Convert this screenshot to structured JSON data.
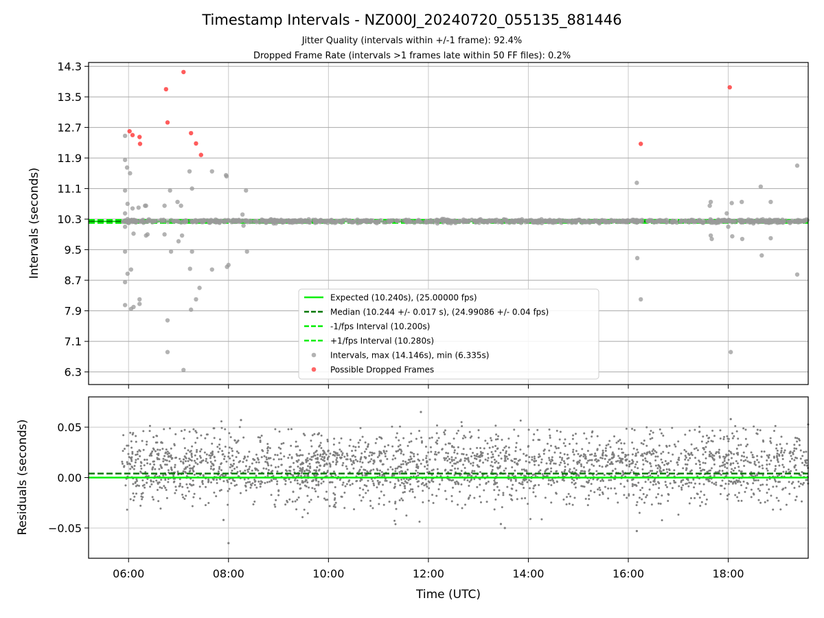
{
  "chart_data": [
    {
      "type": "scatter",
      "panel": "top",
      "title": "Timestamp Intervals - NZ000J_20240720_055135_881446",
      "subtitle_lines": [
        "Jitter Quality (intervals within +/-1 frame): 92.4%",
        "Dropped Frame Rate (intervals >1 frames late within 50 FF files): 0.2%"
      ],
      "ylabel": "Intervals (seconds)",
      "xlabel": "",
      "x_unit": "hours UTC",
      "xlim": [
        5.2,
        19.6
      ],
      "ylim": [
        5.97,
        14.4
      ],
      "yticks": [
        "6.3",
        "7.1",
        "7.9",
        "8.7",
        "9.5",
        "10.3",
        "11.1",
        "11.9",
        "12.7",
        "13.5",
        "14.3"
      ],
      "grid": true,
      "legend_position": "lower-center",
      "lines": [
        {
          "name": "Expected (10.240s), (25.00000 fps)",
          "y": 10.24,
          "color": "#00ee00",
          "style": "solid"
        },
        {
          "name": "Median (10.244 +/- 0.017 s), (24.99086 +/- 0.04 fps)",
          "y": 10.244,
          "color": "#007700",
          "style": "dashed"
        },
        {
          "name": "-1/fps Interval (10.200s)",
          "y": 10.2,
          "color": "#00ee00",
          "style": "dashed"
        },
        {
          "name": "+1/fps Interval (10.280s)",
          "y": 10.28,
          "color": "#00ee00",
          "style": "dashed"
        }
      ],
      "series": [
        {
          "name": "Intervals, max (14.146s), min (6.335s)",
          "color": "#999999",
          "points": [
            [
              5.93,
              12.48
            ],
            [
              5.93,
              11.85
            ],
            [
              5.93,
              11.05
            ],
            [
              5.93,
              10.45
            ],
            [
              5.93,
              10.1
            ],
            [
              5.93,
              9.45
            ],
            [
              5.93,
              8.65
            ],
            [
              5.93,
              8.05
            ],
            [
              5.97,
              11.65
            ],
            [
              5.98,
              10.7
            ],
            [
              5.98,
              10.3
            ],
            [
              5.98,
              8.87
            ],
            [
              6.03,
              11.5
            ],
            [
              6.05,
              8.98
            ],
            [
              6.05,
              7.95
            ],
            [
              6.08,
              10.58
            ],
            [
              6.1,
              9.92
            ],
            [
              6.1,
              8.0
            ],
            [
              6.2,
              10.6
            ],
            [
              6.22,
              8.08
            ],
            [
              6.22,
              8.2
            ],
            [
              6.33,
              10.65
            ],
            [
              6.35,
              10.65
            ],
            [
              6.35,
              9.87
            ],
            [
              6.38,
              9.9
            ],
            [
              6.72,
              10.65
            ],
            [
              6.72,
              9.9
            ],
            [
              6.78,
              7.65
            ],
            [
              6.78,
              6.82
            ],
            [
              6.83,
              11.05
            ],
            [
              6.85,
              9.45
            ],
            [
              6.98,
              10.75
            ],
            [
              7.0,
              9.72
            ],
            [
              7.05,
              10.65
            ],
            [
              7.07,
              9.87
            ],
            [
              7.1,
              6.35
            ],
            [
              7.22,
              11.55
            ],
            [
              7.23,
              9.0
            ],
            [
              7.25,
              7.93
            ],
            [
              7.27,
              11.1
            ],
            [
              7.27,
              9.45
            ],
            [
              7.35,
              8.2
            ],
            [
              7.42,
              8.5
            ],
            [
              7.67,
              11.55
            ],
            [
              7.67,
              8.98
            ],
            [
              7.95,
              11.45
            ],
            [
              7.96,
              11.42
            ],
            [
              7.97,
              9.05
            ],
            [
              8.0,
              9.1
            ],
            [
              8.28,
              10.42
            ],
            [
              8.3,
              10.13
            ],
            [
              8.35,
              11.05
            ],
            [
              8.37,
              9.45
            ],
            [
              16.17,
              11.25
            ],
            [
              16.18,
              9.28
            ],
            [
              16.25,
              8.2
            ],
            [
              17.63,
              10.65
            ],
            [
              17.65,
              10.75
            ],
            [
              17.65,
              9.87
            ],
            [
              17.67,
              9.78
            ],
            [
              17.97,
              10.45
            ],
            [
              18.0,
              10.1
            ],
            [
              18.05,
              6.82
            ],
            [
              18.07,
              10.72
            ],
            [
              18.08,
              9.85
            ],
            [
              18.27,
              10.75
            ],
            [
              18.28,
              9.78
            ],
            [
              18.65,
              11.15
            ],
            [
              18.67,
              9.35
            ],
            [
              18.85,
              10.75
            ],
            [
              18.85,
              9.8
            ],
            [
              19.38,
              11.7
            ],
            [
              19.38,
              8.85
            ]
          ]
        },
        {
          "name": "Possible Dropped Frames",
          "color": "#ff3333",
          "points": [
            [
              6.02,
              12.6
            ],
            [
              6.08,
              12.5
            ],
            [
              6.22,
              12.45
            ],
            [
              6.23,
              12.27
            ],
            [
              6.75,
              13.7
            ],
            [
              6.78,
              12.83
            ],
            [
              7.1,
              14.15
            ],
            [
              7.25,
              12.55
            ],
            [
              7.35,
              12.28
            ],
            [
              7.45,
              11.98
            ],
            [
              16.25,
              12.27
            ],
            [
              18.03,
              13.75
            ]
          ]
        }
      ]
    },
    {
      "type": "scatter",
      "panel": "bottom",
      "ylabel": "Residuals (seconds)",
      "xlabel": "Time (UTC)",
      "x_unit": "hours UTC",
      "xlim": [
        5.2,
        19.6
      ],
      "ylim": [
        -0.08,
        0.08
      ],
      "yticks": [
        "−0.05",
        "0.00",
        "0.05"
      ],
      "xticks": [
        "06:00",
        "08:00",
        "10:00",
        "12:00",
        "14:00",
        "16:00",
        "18:00"
      ],
      "grid": true,
      "lines": [
        {
          "name": "Expected",
          "y": 0.0,
          "color": "#00ee00",
          "style": "solid"
        },
        {
          "name": "Median",
          "y": 0.004,
          "color": "#007700",
          "style": "dashed"
        }
      ],
      "series": [
        {
          "name": "Residuals",
          "color": "#7f7f7f",
          "x_range": [
            5.87,
            19.6
          ],
          "count": 2600,
          "bands": [
            {
              "center": 0.0,
              "spread": 0.006,
              "weight": 0.4
            },
            {
              "center": 0.02,
              "spread": 0.006,
              "weight": 0.4
            },
            {
              "center": 0.04,
              "spread": 0.006,
              "weight": 0.1
            },
            {
              "center": -0.02,
              "spread": 0.006,
              "weight": 0.1
            }
          ],
          "outliers": [
            [
              8.0,
              -0.065
            ],
            [
              7.9,
              -0.042
            ],
            [
              13.45,
              -0.046
            ],
            [
              13.53,
              -0.05
            ],
            [
              16.17,
              -0.053
            ],
            [
              11.85,
              0.065
            ],
            [
              8.25,
              0.057
            ],
            [
              18.05,
              0.058
            ]
          ]
        }
      ]
    }
  ]
}
